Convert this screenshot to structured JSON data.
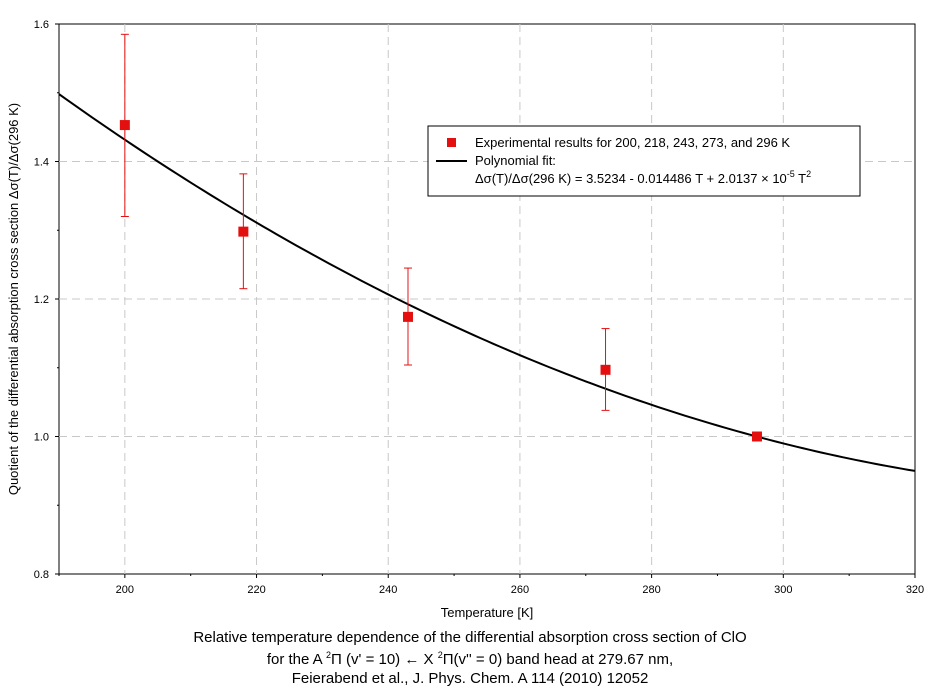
{
  "chart_data": {
    "type": "scatter",
    "xlabel": "Temperature [K]",
    "ylabel": "Quotient of the differential absorption cross section Δσ(T)/Δσ(296 K)",
    "xlim": [
      190,
      320
    ],
    "ylim": [
      0.8,
      1.6
    ],
    "x_ticks": [
      "200",
      "220",
      "240",
      "260",
      "280",
      "300",
      "320"
    ],
    "y_ticks": [
      "0.8",
      "1.0",
      "1.2",
      "1.4",
      "1.6"
    ],
    "grid": true,
    "legend_position": "top-right",
    "series": [
      {
        "name": "Experimental results for 200, 218, 243, 273, and 296 K",
        "kind": "scatter-with-errorbars",
        "color": "#e41010",
        "x": [
          200,
          218,
          243,
          273,
          296
        ],
        "y": [
          1.453,
          1.298,
          1.174,
          1.097,
          1.0
        ],
        "y_err_low": [
          1.32,
          1.215,
          1.104,
          1.038,
          1.0
        ],
        "y_err_high": [
          1.585,
          1.382,
          1.245,
          1.157,
          1.0
        ]
      },
      {
        "name": "Polynomial fit:",
        "kind": "line",
        "color": "#000000",
        "coefficients": [
          3.5234,
          -0.014486,
          2.0137e-05
        ]
      }
    ],
    "legend": {
      "formula_main": "Δσ(T)/Δσ(296 K) = 3.5234 - 0.014486 T + 2.0137 × 10",
      "formula_exp": "-5",
      "formula_tail": " T",
      "formula_tail_exp": "2"
    },
    "caption": {
      "line1": "Relative temperature dependence of the differential absorption cross section of ClO",
      "line2_a": "for the A ",
      "line2_sup1": "2",
      "line2_b": "Π (v' = 10) ← X ",
      "line2_sup2": "2",
      "line2_c": "Π(v'' = 0) band head at 279.67 nm,",
      "line3": "Feierabend et al., J. Phys. Chem. A 114 (2010) 12052"
    }
  }
}
